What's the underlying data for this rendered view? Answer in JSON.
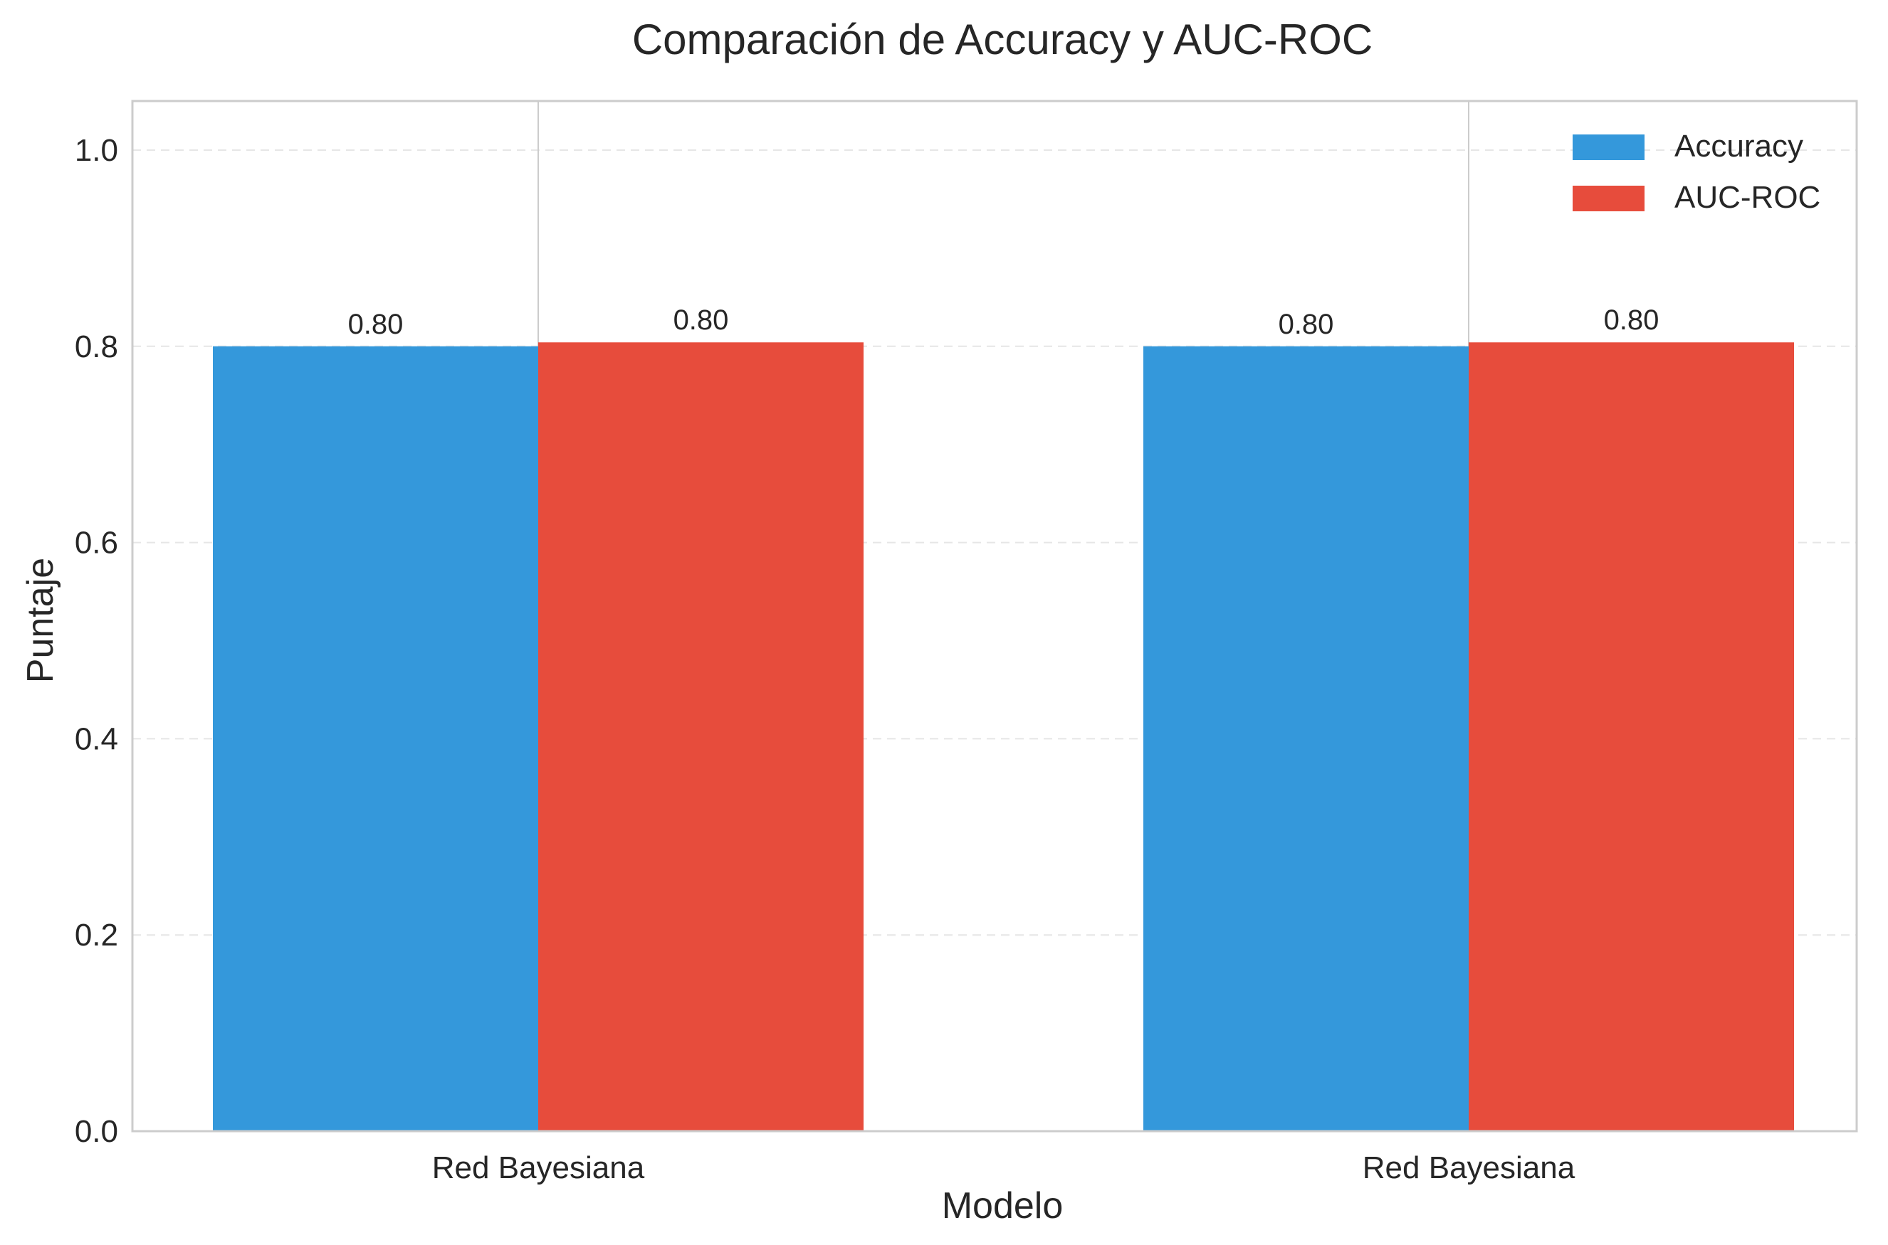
{
  "chart_data": {
    "type": "bar",
    "title": "Comparación de Accuracy y AUC-ROC",
    "xlabel": "Modelo",
    "ylabel": "Puntaje",
    "categories": [
      "Red Bayesiana",
      "Red Bayesiana"
    ],
    "series": [
      {
        "name": "Accuracy",
        "values": [
          0.8,
          0.8
        ],
        "labels": [
          "0.80",
          "0.80"
        ],
        "color": "#3498db"
      },
      {
        "name": "AUC-ROC",
        "values": [
          0.804,
          0.804
        ],
        "labels": [
          "0.80",
          "0.80"
        ],
        "color": "#e74c3c"
      }
    ],
    "ylim": [
      0,
      1.05
    ],
    "yticks": [
      0.0,
      0.2,
      0.4,
      0.6,
      0.8,
      1.0
    ],
    "ytick_labels": [
      "0.0",
      "0.2",
      "0.4",
      "0.6",
      "0.8",
      "1.0"
    ],
    "grid": true,
    "legend_position": "top-right"
  }
}
